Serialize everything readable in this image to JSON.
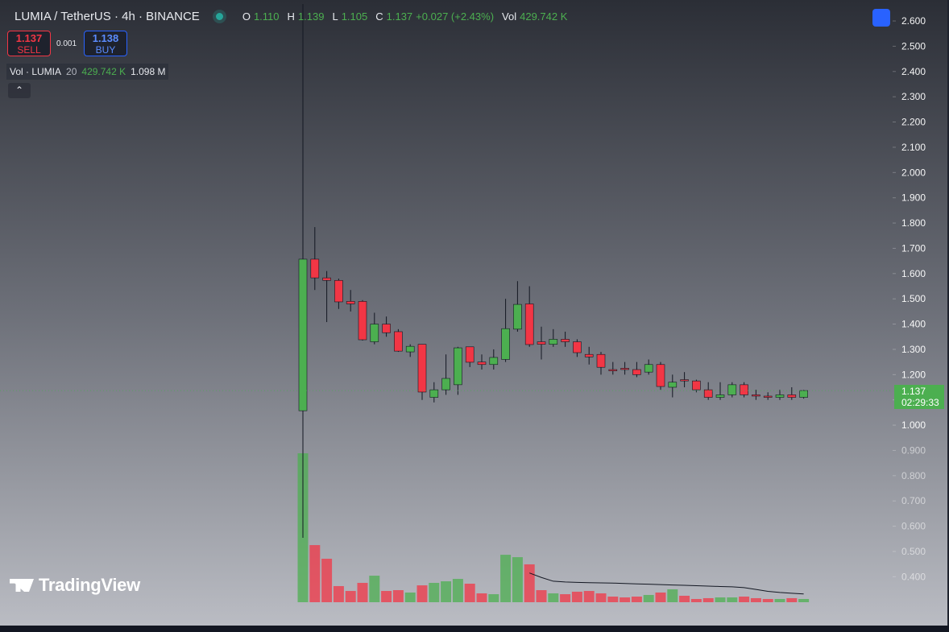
{
  "header": {
    "symbol": "LUMIA / TetherUS · 4h · BINANCE",
    "o_label": "O",
    "o": "1.110",
    "h_label": "H",
    "h": "1.139",
    "l_label": "L",
    "l": "1.105",
    "c_label": "C",
    "c": "1.137",
    "change": "+0.027 (+2.43%)",
    "vol_label": "Vol",
    "vol": "429.742 K"
  },
  "trade": {
    "sell_price": "1.137",
    "sell_label": "SELL",
    "spread": "0.001",
    "buy_price": "1.138",
    "buy_label": "BUY"
  },
  "volume_legend": {
    "name": "Vol · LUMIA",
    "length": "20",
    "value": "429.742 K",
    "ma": "1.098 M"
  },
  "logo": "TradingView",
  "chart_data": {
    "type": "candlestick",
    "up_color": "#4caf50",
    "down_color": "#f23645",
    "open": [
      1.057,
      1.657,
      1.583,
      1.573,
      1.49,
      1.49,
      1.33,
      1.4,
      1.37,
      1.29,
      1.32,
      1.11,
      1.14,
      1.16,
      1.31,
      1.25,
      1.24,
      1.26,
      1.38,
      1.48,
      1.33,
      1.32,
      1.34,
      1.33,
      1.28,
      1.28,
      1.22,
      1.225,
      1.22,
      1.21,
      1.24,
      1.15,
      1.18,
      1.175,
      1.14,
      1.11,
      1.12,
      1.16,
      1.12,
      1.115,
      1.11,
      1.12,
      1.11
    ],
    "high": [
      2.667,
      1.784,
      1.61,
      1.58,
      1.535,
      1.495,
      1.445,
      1.43,
      1.38,
      1.32,
      1.32,
      1.17,
      1.28,
      1.31,
      1.31,
      1.28,
      1.3,
      1.5,
      1.57,
      1.55,
      1.39,
      1.38,
      1.37,
      1.34,
      1.31,
      1.29,
      1.25,
      1.25,
      1.25,
      1.26,
      1.25,
      1.2,
      1.21,
      1.18,
      1.17,
      1.17,
      1.17,
      1.17,
      1.14,
      1.13,
      1.14,
      1.15,
      1.139
    ],
    "low": [
      0.554,
      1.535,
      1.408,
      1.46,
      1.45,
      1.335,
      1.32,
      1.35,
      1.29,
      1.27,
      1.1,
      1.09,
      1.12,
      1.12,
      1.23,
      1.22,
      1.22,
      1.25,
      1.37,
      1.31,
      1.26,
      1.31,
      1.31,
      1.27,
      1.24,
      1.2,
      1.2,
      1.2,
      1.19,
      1.2,
      1.14,
      1.11,
      1.15,
      1.13,
      1.1,
      1.1,
      1.11,
      1.11,
      1.1,
      1.1,
      1.1,
      1.1,
      1.105
    ],
    "close": [
      1.657,
      1.583,
      1.573,
      1.488,
      1.48,
      1.338,
      1.4,
      1.366,
      1.293,
      1.312,
      1.131,
      1.14,
      1.185,
      1.306,
      1.249,
      1.24,
      1.268,
      1.382,
      1.478,
      1.319,
      1.32,
      1.34,
      1.33,
      1.287,
      1.27,
      1.229,
      1.215,
      1.22,
      1.2,
      1.24,
      1.153,
      1.17,
      1.175,
      1.14,
      1.11,
      1.12,
      1.16,
      1.12,
      1.115,
      1.11,
      1.12,
      1.11,
      1.137
    ],
    "volume": [
      19870,
      7620,
      5800,
      2150,
      1500,
      2580,
      3540,
      1500,
      1610,
      1290,
      2250,
      2580,
      2790,
      3110,
      2470,
      1180,
      1070,
      6330,
      6010,
      5050,
      1610,
      1180,
      1070,
      1400,
      1500,
      1180,
      750,
      640,
      750,
      970,
      1290,
      1720,
      860,
      430,
      540,
      640,
      640,
      750,
      540,
      430,
      430,
      540,
      429.742
    ],
    "volume_ma": [
      null,
      null,
      null,
      null,
      null,
      null,
      null,
      null,
      null,
      null,
      null,
      null,
      null,
      null,
      null,
      null,
      null,
      null,
      null,
      3900,
      3300,
      2800,
      2700,
      2650,
      2600,
      2580,
      2550,
      2500,
      2450,
      2400,
      2350,
      2300,
      2250,
      2200,
      2150,
      2100,
      2050,
      1950,
      1700,
      1450,
      1300,
      1200,
      1098
    ],
    "ma_color": "#131722",
    "ylim": [
      0.213,
      2.683
    ],
    "yticks": [
      {
        "value": 0.4,
        "label": "0.400"
      },
      {
        "value": 0.5,
        "label": "0.500"
      },
      {
        "value": 0.6,
        "label": "0.600"
      },
      {
        "value": 0.7,
        "label": "0.700"
      },
      {
        "value": 0.8,
        "label": "0.800"
      },
      {
        "value": 0.9,
        "label": "0.900"
      },
      {
        "value": 1.0,
        "label": "1.000"
      },
      {
        "value": 1.1,
        "label": "1.100"
      },
      {
        "value": 1.2,
        "label": "1.200"
      },
      {
        "value": 1.3,
        "label": "1.300"
      },
      {
        "value": 1.4,
        "label": "1.400"
      },
      {
        "value": 1.5,
        "label": "1.500"
      },
      {
        "value": 1.6,
        "label": "1.600"
      },
      {
        "value": 1.7,
        "label": "1.700"
      },
      {
        "value": 1.8,
        "label": "1.800"
      },
      {
        "value": 1.9,
        "label": "1.900"
      },
      {
        "value": 2.0,
        "label": "2.000"
      },
      {
        "value": 2.1,
        "label": "2.100"
      },
      {
        "value": 2.2,
        "label": "2.200"
      },
      {
        "value": 2.3,
        "label": "2.300"
      },
      {
        "value": 2.4,
        "label": "2.400"
      },
      {
        "value": 2.5,
        "label": "2.500"
      },
      {
        "value": 2.6,
        "label": "2.600"
      }
    ],
    "last_price": {
      "value": 1.137,
      "label": "1.137"
    },
    "countdown": "02:29:33"
  }
}
